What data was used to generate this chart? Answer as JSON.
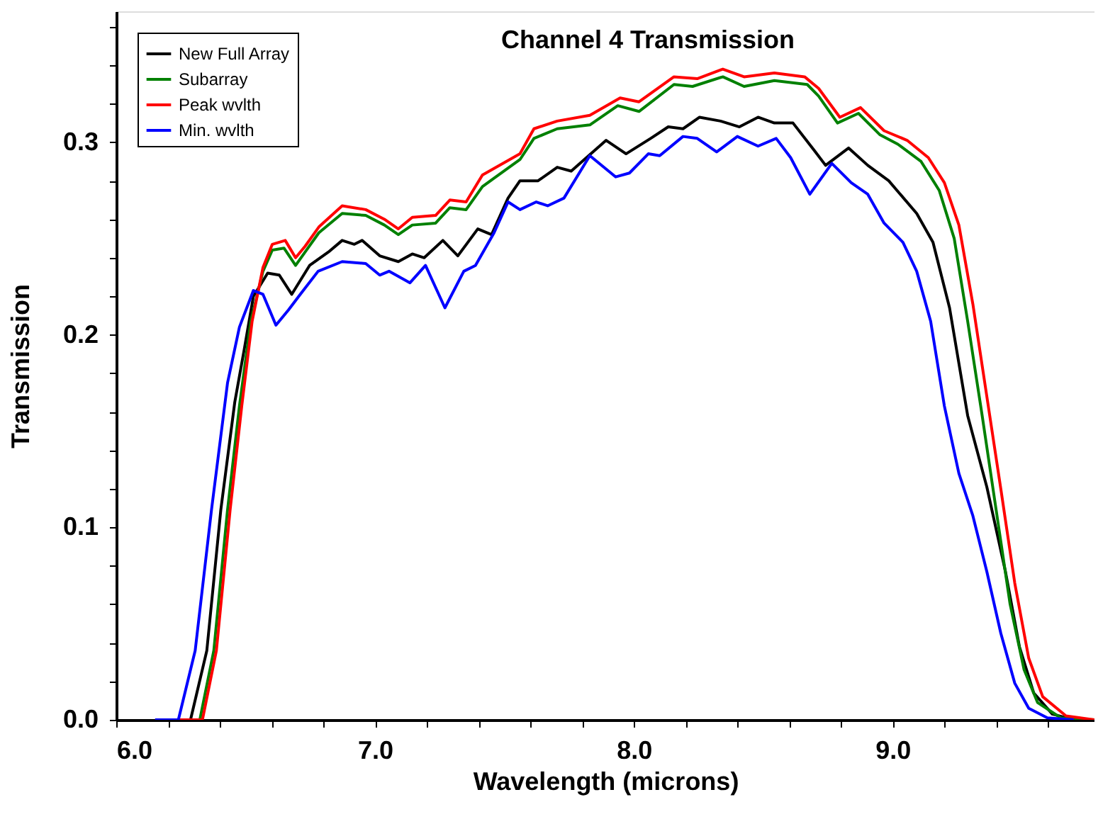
{
  "chart_data": {
    "type": "line",
    "title": "Channel 4 Transmission",
    "xlabel": "Wavelength (microns)",
    "ylabel": "Transmission",
    "xlim": [
      6.0,
      9.78
    ],
    "ylim": [
      0,
      0.368
    ],
    "xticks": [
      {
        "value": 6.0,
        "label": "6.0"
      },
      {
        "value": 6.2,
        "label": null
      },
      {
        "value": 6.4,
        "label": null
      },
      {
        "value": 6.6,
        "label": null
      },
      {
        "value": 6.8,
        "label": null
      },
      {
        "value": 7.0,
        "label": "7.0"
      },
      {
        "value": 7.2,
        "label": null
      },
      {
        "value": 7.4,
        "label": null
      },
      {
        "value": 7.6,
        "label": null
      },
      {
        "value": 7.8,
        "label": null
      },
      {
        "value": 8.0,
        "label": "8.0"
      },
      {
        "value": 8.2,
        "label": null
      },
      {
        "value": 8.4,
        "label": null
      },
      {
        "value": 8.6,
        "label": null
      },
      {
        "value": 8.8,
        "label": null
      },
      {
        "value": 9.0,
        "label": "9.0"
      },
      {
        "value": 9.2,
        "label": null
      },
      {
        "value": 9.4,
        "label": null
      },
      {
        "value": 9.6,
        "label": null
      }
    ],
    "yticks": [
      {
        "value": 0,
        "label": "0.0"
      },
      {
        "value": 0.02,
        "label": null
      },
      {
        "value": 0.04,
        "label": null
      },
      {
        "value": 0.06,
        "label": null
      },
      {
        "value": 0.08,
        "label": null
      },
      {
        "value": 0.1,
        "label": "0.1"
      },
      {
        "value": 0.12,
        "label": null
      },
      {
        "value": 0.14,
        "label": null
      },
      {
        "value": 0.16,
        "label": null
      },
      {
        "value": 0.18,
        "label": null
      },
      {
        "value": 0.2,
        "label": "0.2"
      },
      {
        "value": 0.22,
        "label": null
      },
      {
        "value": 0.24,
        "label": null
      },
      {
        "value": 0.26,
        "label": null
      },
      {
        "value": 0.28,
        "label": null
      },
      {
        "value": 0.3,
        "label": "0.3"
      },
      {
        "value": 0.32,
        "label": null
      },
      {
        "value": 0.34,
        "label": null
      },
      {
        "value": 0.36,
        "label": null
      }
    ],
    "grid": false,
    "legend": "top left",
    "marker": "none",
    "line_style": "solid",
    "series": [
      {
        "name": "New Full Array",
        "color": "#000000",
        "x": [
          6.2,
          6.287,
          6.35,
          6.404,
          6.458,
          6.494,
          6.53,
          6.585,
          6.63,
          6.678,
          6.747,
          6.82,
          6.873,
          6.92,
          6.95,
          7.018,
          7.09,
          7.144,
          7.19,
          7.262,
          7.32,
          7.397,
          7.45,
          7.514,
          7.56,
          7.63,
          7.704,
          7.758,
          7.893,
          7.97,
          8.065,
          8.133,
          8.19,
          8.254,
          8.335,
          8.408,
          8.48,
          8.543,
          8.615,
          8.696,
          8.741,
          8.83,
          8.904,
          8.985,
          9.093,
          9.156,
          9.22,
          9.29,
          9.364,
          9.436,
          9.49,
          9.545,
          9.617,
          9.7
        ],
        "values": [
          0,
          0,
          0.036,
          0.109,
          0.165,
          0.192,
          0.22,
          0.232,
          0.231,
          0.221,
          0.236,
          0.243,
          0.249,
          0.247,
          0.249,
          0.241,
          0.238,
          0.242,
          0.24,
          0.249,
          0.241,
          0.255,
          0.252,
          0.271,
          0.28,
          0.28,
          0.287,
          0.285,
          0.301,
          0.294,
          0.302,
          0.308,
          0.307,
          0.313,
          0.311,
          0.308,
          0.313,
          0.31,
          0.31,
          0.296,
          0.288,
          0.297,
          0.288,
          0.28,
          0.263,
          0.248,
          0.214,
          0.158,
          0.121,
          0.077,
          0.038,
          0.014,
          0.003,
          0
        ]
      },
      {
        "name": "Subarray",
        "color": "#008000",
        "x": [
          6.2,
          6.323,
          6.377,
          6.43,
          6.476,
          6.52,
          6.567,
          6.603,
          6.648,
          6.693,
          6.73,
          6.783,
          6.873,
          6.964,
          7.036,
          7.09,
          7.144,
          7.234,
          7.289,
          7.352,
          7.415,
          7.56,
          7.614,
          7.704,
          7.83,
          7.938,
          8.02,
          8.155,
          8.227,
          8.344,
          8.426,
          8.543,
          8.67,
          8.714,
          8.787,
          8.868,
          8.95,
          9.02,
          9.11,
          9.18,
          9.238,
          9.29,
          9.346,
          9.4,
          9.454,
          9.508,
          9.56,
          9.65,
          9.78
        ],
        "values": [
          0,
          0,
          0.036,
          0.109,
          0.163,
          0.207,
          0.233,
          0.244,
          0.245,
          0.236,
          0.243,
          0.253,
          0.263,
          0.262,
          0.257,
          0.252,
          0.257,
          0.258,
          0.266,
          0.265,
          0.277,
          0.291,
          0.302,
          0.307,
          0.309,
          0.319,
          0.316,
          0.33,
          0.329,
          0.334,
          0.329,
          0.332,
          0.33,
          0.324,
          0.31,
          0.315,
          0.304,
          0.299,
          0.29,
          0.275,
          0.25,
          0.207,
          0.158,
          0.109,
          0.06,
          0.026,
          0.009,
          0.001,
          0
        ]
      },
      {
        "name": "Peak wvlth",
        "color": "#ff0000",
        "x": [
          6.2,
          6.333,
          6.387,
          6.44,
          6.485,
          6.525,
          6.567,
          6.603,
          6.653,
          6.693,
          6.73,
          6.783,
          6.873,
          6.964,
          7.036,
          7.09,
          7.144,
          7.234,
          7.289,
          7.352,
          7.415,
          7.56,
          7.614,
          7.704,
          7.83,
          7.947,
          8.02,
          8.155,
          8.245,
          8.344,
          8.426,
          8.543,
          8.66,
          8.714,
          8.796,
          8.876,
          8.967,
          9.056,
          9.138,
          9.2,
          9.256,
          9.31,
          9.364,
          9.418,
          9.472,
          9.526,
          9.58,
          9.67,
          9.78
        ],
        "values": [
          0,
          0,
          0.036,
          0.109,
          0.163,
          0.207,
          0.235,
          0.247,
          0.249,
          0.24,
          0.246,
          0.256,
          0.267,
          0.265,
          0.26,
          0.255,
          0.261,
          0.262,
          0.27,
          0.269,
          0.283,
          0.294,
          0.307,
          0.311,
          0.314,
          0.323,
          0.321,
          0.334,
          0.333,
          0.338,
          0.334,
          0.336,
          0.334,
          0.328,
          0.313,
          0.318,
          0.306,
          0.301,
          0.292,
          0.279,
          0.257,
          0.216,
          0.168,
          0.12,
          0.071,
          0.032,
          0.012,
          0.002,
          0
        ]
      },
      {
        "name": "Min. wvlth",
        "color": "#0000ff",
        "x": [
          6.15,
          6.24,
          6.305,
          6.368,
          6.43,
          6.476,
          6.53,
          6.567,
          6.617,
          6.666,
          6.711,
          6.78,
          6.873,
          6.964,
          7.018,
          7.054,
          7.135,
          7.195,
          7.27,
          7.343,
          7.388,
          7.46,
          7.514,
          7.56,
          7.623,
          7.667,
          7.73,
          7.83,
          7.93,
          7.983,
          8.056,
          8.1,
          8.19,
          8.245,
          8.32,
          8.4,
          8.48,
          8.55,
          8.606,
          8.68,
          8.765,
          8.84,
          8.904,
          8.967,
          9.04,
          9.093,
          9.147,
          9.2,
          9.256,
          9.31,
          9.364,
          9.418,
          9.472,
          9.526,
          9.598,
          9.7
        ],
        "values": [
          0,
          0,
          0.036,
          0.109,
          0.175,
          0.204,
          0.223,
          0.221,
          0.205,
          0.213,
          0.221,
          0.233,
          0.238,
          0.237,
          0.231,
          0.233,
          0.227,
          0.236,
          0.214,
          0.233,
          0.236,
          0.253,
          0.269,
          0.265,
          0.269,
          0.267,
          0.271,
          0.293,
          0.282,
          0.284,
          0.294,
          0.293,
          0.303,
          0.302,
          0.295,
          0.303,
          0.298,
          0.302,
          0.292,
          0.273,
          0.289,
          0.279,
          0.273,
          0.258,
          0.248,
          0.233,
          0.207,
          0.163,
          0.128,
          0.106,
          0.077,
          0.045,
          0.019,
          0.006,
          0.001,
          0
        ]
      }
    ]
  }
}
